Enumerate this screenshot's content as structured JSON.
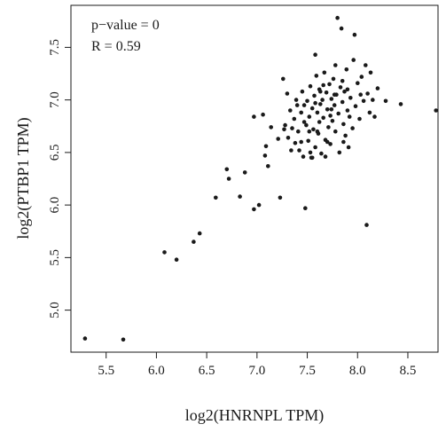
{
  "chart_data": {
    "type": "scatter",
    "xlabel": "log2(HNRNPL TPM)",
    "ylabel": "log2(PTBP1 TPM)",
    "xlim": [
      5.15,
      8.8
    ],
    "ylim": [
      4.6,
      7.9
    ],
    "xticks": [
      5.5,
      6.0,
      6.5,
      7.0,
      7.5,
      8.0,
      8.5
    ],
    "xtick_labels": [
      "5.5",
      "6.0",
      "6.5",
      "7.0",
      "7.5",
      "8.0",
      "8.5"
    ],
    "yticks": [
      5.0,
      5.5,
      6.0,
      6.5,
      7.0,
      7.5
    ],
    "ytick_labels": [
      "5.0",
      "5.5",
      "6.0",
      "6.5",
      "7.0",
      "7.5"
    ],
    "grid": false,
    "annotations": [
      "p−value = 0",
      "R = 0.59"
    ],
    "point_color": "#1a1a1a",
    "points": [
      [
        5.29,
        4.73
      ],
      [
        5.67,
        4.72
      ],
      [
        6.08,
        5.55
      ],
      [
        6.2,
        5.48
      ],
      [
        6.37,
        5.65
      ],
      [
        6.43,
        5.73
      ],
      [
        6.59,
        6.07
      ],
      [
        6.7,
        6.34
      ],
      [
        6.72,
        6.25
      ],
      [
        6.83,
        6.08
      ],
      [
        6.88,
        6.31
      ],
      [
        6.97,
        6.84
      ],
      [
        6.97,
        5.96
      ],
      [
        7.02,
        6.0
      ],
      [
        7.06,
        6.86
      ],
      [
        7.08,
        6.47
      ],
      [
        7.09,
        6.56
      ],
      [
        7.11,
        6.37
      ],
      [
        7.14,
        6.74
      ],
      [
        7.21,
        6.63
      ],
      [
        7.23,
        6.07
      ],
      [
        7.26,
        7.2
      ],
      [
        7.27,
        6.72
      ],
      [
        7.28,
        6.76
      ],
      [
        7.3,
        7.06
      ],
      [
        7.31,
        6.64
      ],
      [
        7.33,
        6.9
      ],
      [
        7.35,
        6.73
      ],
      [
        7.37,
        6.82
      ],
      [
        7.38,
        6.59
      ],
      [
        7.4,
        6.95
      ],
      [
        7.41,
        6.7
      ],
      [
        7.42,
        6.52
      ],
      [
        7.44,
        6.88
      ],
      [
        7.45,
        7.08
      ],
      [
        7.46,
        6.46
      ],
      [
        7.47,
        6.79
      ],
      [
        7.48,
        5.97
      ],
      [
        7.5,
        6.99
      ],
      [
        7.51,
        6.61
      ],
      [
        7.52,
        6.84
      ],
      [
        7.53,
        7.13
      ],
      [
        7.54,
        6.45
      ],
      [
        7.55,
        6.92
      ],
      [
        7.56,
        6.72
      ],
      [
        7.57,
        7.04
      ],
      [
        7.58,
        6.55
      ],
      [
        7.59,
        7.23
      ],
      [
        7.6,
        6.88
      ],
      [
        7.61,
        6.68
      ],
      [
        7.62,
        7.1
      ],
      [
        7.63,
        6.96
      ],
      [
        7.64,
        6.49
      ],
      [
        7.65,
        7.0
      ],
      [
        7.66,
        6.83
      ],
      [
        7.67,
        7.26
      ],
      [
        7.68,
        6.62
      ],
      [
        7.69,
        7.07
      ],
      [
        7.7,
        6.91
      ],
      [
        7.71,
        6.74
      ],
      [
        7.72,
        7.15
      ],
      [
        7.73,
        6.58
      ],
      [
        7.74,
        7.01
      ],
      [
        7.75,
        6.8
      ],
      [
        7.76,
        7.2
      ],
      [
        7.77,
        6.95
      ],
      [
        7.78,
        6.7
      ],
      [
        7.79,
        7.05
      ],
      [
        7.8,
        7.78
      ],
      [
        7.81,
        6.87
      ],
      [
        7.82,
        6.5
      ],
      [
        7.83,
        7.12
      ],
      [
        7.84,
        7.68
      ],
      [
        7.85,
        6.98
      ],
      [
        7.86,
        6.77
      ],
      [
        7.87,
        7.08
      ],
      [
        7.88,
        6.66
      ],
      [
        7.89,
        7.29
      ],
      [
        7.9,
        6.9
      ],
      [
        7.91,
        6.55
      ],
      [
        7.93,
        7.02
      ],
      [
        7.95,
        6.73
      ],
      [
        7.96,
        7.38
      ],
      [
        7.97,
        7.62
      ],
      [
        7.98,
        6.94
      ],
      [
        8.0,
        7.16
      ],
      [
        8.02,
        6.82
      ],
      [
        8.04,
        7.22
      ],
      [
        8.06,
        6.99
      ],
      [
        8.08,
        7.33
      ],
      [
        8.09,
        5.81
      ],
      [
        8.1,
        7.06
      ],
      [
        8.12,
        6.88
      ],
      [
        8.13,
        7.26
      ],
      [
        8.15,
        7.0
      ],
      [
        8.17,
        6.84
      ],
      [
        8.2,
        7.11
      ],
      [
        8.28,
        6.99
      ],
      [
        8.43,
        6.96
      ],
      [
        8.78,
        6.9
      ],
      [
        7.34,
        6.52
      ],
      [
        7.39,
        7.0
      ],
      [
        7.44,
        6.6
      ],
      [
        7.49,
        6.76
      ],
      [
        7.53,
        6.5
      ],
      [
        7.58,
        6.97
      ],
      [
        7.62,
        6.79
      ],
      [
        7.66,
        7.14
      ],
      [
        7.7,
        6.6
      ],
      [
        7.74,
        6.91
      ],
      [
        7.78,
        7.33
      ],
      [
        7.58,
        7.43
      ],
      [
        7.63,
        7.08
      ],
      [
        7.73,
        6.85
      ],
      [
        7.68,
        6.46
      ],
      [
        7.92,
        6.84
      ],
      [
        7.85,
        7.18
      ],
      [
        7.77,
        7.05
      ],
      [
        7.52,
        6.7
      ],
      [
        7.47,
        6.95
      ],
      [
        7.9,
        7.1
      ],
      [
        8.03,
        7.05
      ],
      [
        7.86,
        6.6
      ],
      [
        7.55,
        6.45
      ],
      [
        7.6,
        6.7
      ]
    ]
  }
}
